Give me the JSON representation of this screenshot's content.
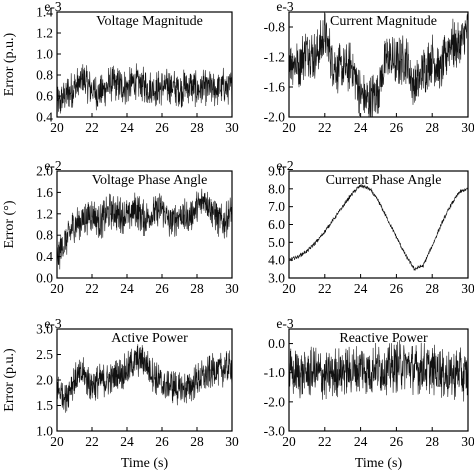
{
  "chart_data": [
    {
      "type": "line",
      "title": "Voltage Magnitude",
      "ylabel": "Error (p.u.)",
      "multiplier": "e-3",
      "xlim": [
        20,
        30
      ],
      "ylim": [
        0.4,
        1.4
      ],
      "xticks": [
        "20",
        "22",
        "24",
        "26",
        "28",
        "30"
      ],
      "yticks": [
        "0.4",
        "0.6",
        "0.8",
        "1.0",
        "1.2",
        "1.4"
      ],
      "x": [
        20.0,
        20.5,
        21.0,
        21.5,
        22.0,
        22.5,
        23.0,
        23.5,
        24.0,
        24.5,
        25.0,
        25.5,
        26.0,
        26.5,
        27.0,
        27.5,
        28.0,
        28.5,
        29.0,
        29.5,
        30.0
      ],
      "y": [
        0.5,
        0.62,
        0.68,
        0.75,
        0.66,
        0.62,
        0.72,
        0.7,
        0.68,
        0.74,
        0.7,
        0.66,
        0.68,
        0.7,
        0.66,
        0.7,
        0.66,
        0.68,
        0.66,
        0.7,
        0.68
      ]
    },
    {
      "type": "line",
      "title": "Current Magnitude",
      "ylabel": "",
      "multiplier": "e-3",
      "xlim": [
        20,
        30
      ],
      "ylim": [
        -2.0,
        -0.6
      ],
      "xticks": [
        "20",
        "22",
        "24",
        "26",
        "28",
        "30"
      ],
      "yticks": [
        "-0.8",
        "-1.2",
        "-1.6",
        "-2.0"
      ],
      "x": [
        20.0,
        20.5,
        21.0,
        21.5,
        22.0,
        22.5,
        23.0,
        23.5,
        24.0,
        24.5,
        25.0,
        25.5,
        26.0,
        26.5,
        27.0,
        27.5,
        28.0,
        28.5,
        29.0,
        29.5,
        30.0
      ],
      "y": [
        -1.2,
        -1.3,
        -1.1,
        -1.2,
        -0.9,
        -1.3,
        -1.4,
        -1.3,
        -1.7,
        -1.8,
        -1.6,
        -1.2,
        -1.3,
        -1.2,
        -1.6,
        -1.4,
        -1.2,
        -1.4,
        -1.0,
        -1.1,
        -0.8
      ]
    },
    {
      "type": "line",
      "title": "Voltage Phase Angle",
      "ylabel": "Error (°)",
      "multiplier": "e-2",
      "xlim": [
        20,
        30
      ],
      "ylim": [
        0.0,
        2.0
      ],
      "xticks": [
        "20",
        "22",
        "24",
        "26",
        "28",
        "30"
      ],
      "yticks": [
        "0.0",
        "0.4",
        "0.8",
        "1.2",
        "1.6",
        "2.0"
      ],
      "x": [
        20.0,
        20.5,
        21.0,
        21.5,
        22.0,
        22.5,
        23.0,
        23.5,
        24.0,
        24.5,
        25.0,
        25.5,
        26.0,
        26.5,
        27.0,
        27.5,
        28.0,
        28.5,
        29.0,
        29.5,
        30.0
      ],
      "y": [
        0.4,
        0.7,
        1.0,
        1.1,
        1.2,
        1.05,
        1.25,
        1.2,
        1.15,
        1.3,
        1.1,
        1.2,
        1.3,
        1.0,
        1.2,
        1.1,
        1.3,
        1.5,
        1.2,
        1.0,
        1.25
      ]
    },
    {
      "type": "line",
      "title": "Current Phase Angle",
      "ylabel": "",
      "multiplier": "e-2",
      "xlim": [
        20,
        30
      ],
      "ylim": [
        3.0,
        9.0
      ],
      "xticks": [
        "20",
        "22",
        "24",
        "26",
        "28",
        "30"
      ],
      "yticks": [
        "3.0",
        "4.0",
        "5.0",
        "6.0",
        "7.0",
        "8.0",
        "9.0"
      ],
      "x": [
        20.0,
        20.5,
        21.0,
        21.5,
        22.0,
        22.5,
        23.0,
        23.5,
        24.0,
        24.5,
        25.0,
        25.5,
        26.0,
        26.5,
        27.0,
        27.5,
        28.0,
        28.5,
        29.0,
        29.5,
        30.0
      ],
      "y": [
        4.0,
        4.2,
        4.5,
        5.0,
        5.6,
        6.3,
        7.0,
        7.7,
        8.2,
        8.0,
        7.3,
        6.3,
        5.3,
        4.3,
        3.5,
        3.7,
        4.8,
        6.0,
        7.0,
        7.8,
        8.0
      ]
    },
    {
      "type": "line",
      "title": "Active Power",
      "ylabel": "Error (p.u.)",
      "multiplier": "e-3",
      "xlim": [
        20,
        30
      ],
      "ylim": [
        1.0,
        3.0
      ],
      "xticks": [
        "20",
        "22",
        "24",
        "26",
        "28",
        "30"
      ],
      "yticks": [
        "1.0",
        "1.5",
        "2.0",
        "2.5",
        "3.0"
      ],
      "xlabel": "Time (s)",
      "x": [
        20.0,
        20.5,
        21.0,
        21.5,
        22.0,
        22.5,
        23.0,
        23.5,
        24.0,
        24.5,
        25.0,
        25.5,
        26.0,
        26.5,
        27.0,
        27.5,
        28.0,
        28.5,
        29.0,
        29.5,
        30.0
      ],
      "y": [
        1.8,
        1.7,
        2.0,
        2.1,
        1.9,
        2.0,
        2.0,
        2.1,
        2.2,
        2.4,
        2.35,
        2.1,
        1.9,
        1.9,
        1.8,
        1.85,
        2.0,
        2.1,
        2.2,
        2.2,
        2.25
      ]
    },
    {
      "type": "line",
      "title": "Reactive Power",
      "ylabel": "",
      "multiplier": "e-3",
      "xlim": [
        20,
        30
      ],
      "ylim": [
        -3.0,
        0.5
      ],
      "xticks": [
        "20",
        "22",
        "24",
        "26",
        "28",
        "30"
      ],
      "yticks": [
        "0.0",
        "-1.0",
        "-2.0",
        "-3.0"
      ],
      "xlabel": "Time (s)",
      "x": [
        20.0,
        20.5,
        21.0,
        21.5,
        22.0,
        22.5,
        23.0,
        23.5,
        24.0,
        24.5,
        25.0,
        25.5,
        26.0,
        26.5,
        27.0,
        27.5,
        28.0,
        28.5,
        29.0,
        29.5,
        30.0
      ],
      "y": [
        -1.0,
        -1.1,
        -1.0,
        -1.0,
        -1.1,
        -1.0,
        -0.9,
        -1.0,
        -0.8,
        -0.9,
        -0.8,
        -0.9,
        -0.8,
        -0.7,
        -0.9,
        -0.8,
        -0.9,
        -1.0,
        -1.1,
        -1.0,
        -1.2
      ]
    }
  ]
}
